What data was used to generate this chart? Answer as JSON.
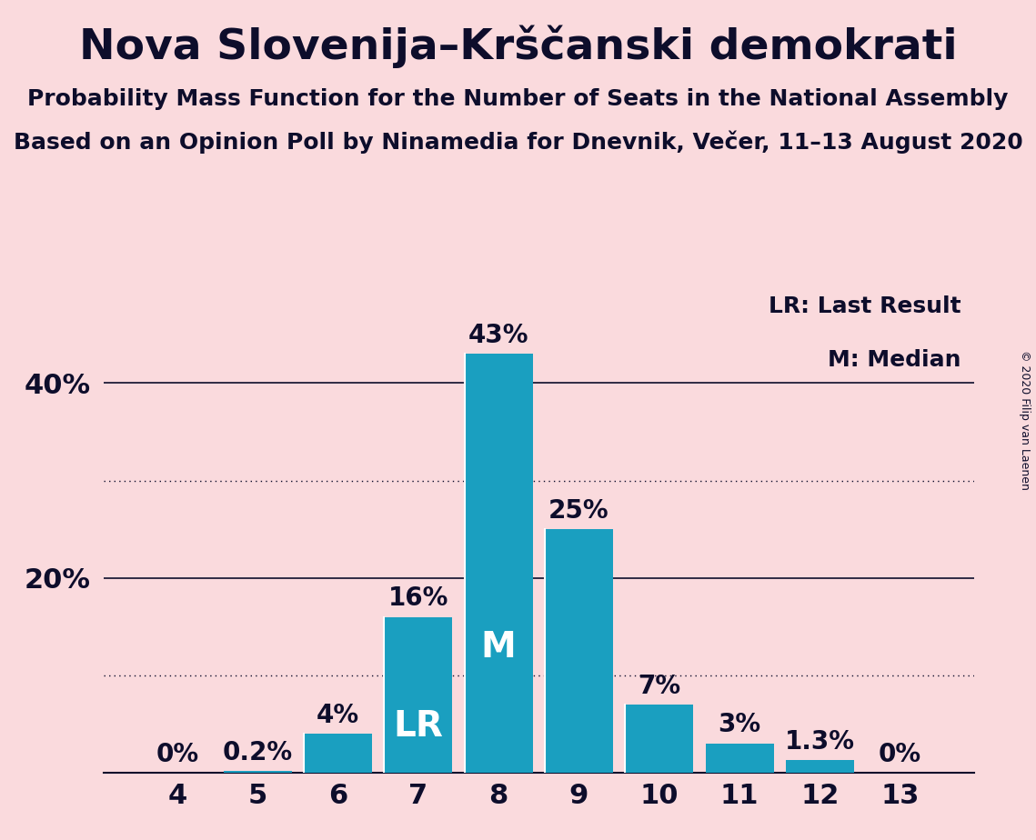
{
  "title": "Nova Slovenija–Krščanski demokrati",
  "subtitle1": "Probability Mass Function for the Number of Seats in the National Assembly",
  "subtitle2": "Based on an Opinion Poll by Ninamedia for Dnevnik, Večer, 11–13 August 2020",
  "copyright": "© 2020 Filip van Laenen",
  "categories": [
    4,
    5,
    6,
    7,
    8,
    9,
    10,
    11,
    12,
    13
  ],
  "values": [
    0.0,
    0.2,
    4.0,
    16.0,
    43.0,
    25.0,
    7.0,
    3.0,
    1.3,
    0.0
  ],
  "bar_labels": [
    "0%",
    "0.2%",
    "4%",
    "16%",
    "43%",
    "25%",
    "7%",
    "3%",
    "1.3%",
    "0%"
  ],
  "bar_color": "#1a9fc0",
  "background_color": "#fadadd",
  "text_color": "#0d0d2b",
  "ylim": [
    0,
    50
  ],
  "yticks": [
    20,
    40
  ],
  "solid_gridlines": [
    20,
    40
  ],
  "dotted_gridlines": [
    10,
    30
  ],
  "legend_lr_text": "LR: Last Result",
  "legend_m_text": "M: Median",
  "lr_bar": 7,
  "median_bar": 8,
  "label_inside_bars": {
    "7": "LR",
    "8": "M"
  },
  "title_fontsize": 34,
  "subtitle_fontsize": 18,
  "bar_label_fontsize": 20,
  "axis_tick_fontsize": 22,
  "legend_fontsize": 18,
  "inside_label_fontsize": 28,
  "copyright_fontsize": 9
}
